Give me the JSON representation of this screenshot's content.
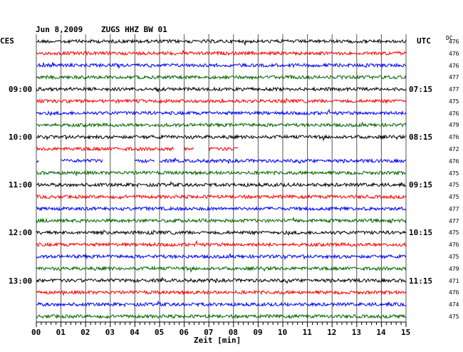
{
  "header": {
    "date": "Jun 8,2009",
    "station": "ZUGS HHZ BW 01",
    "left_zone": "CES",
    "right_zone": "UTC",
    "dc_label": "DC"
  },
  "chart_data": {
    "type": "line",
    "title": "Jun 8,2009   ZUGS HHZ BW 01",
    "xlabel": "Zeit [min]",
    "xlim": [
      0,
      15
    ],
    "x_tick_labels": [
      "00",
      "01",
      "02",
      "03",
      "04",
      "05",
      "06",
      "07",
      "08",
      "09",
      "10",
      "11",
      "12",
      "13",
      "14",
      "15"
    ],
    "left_time_labels": [
      "09:00",
      "10:00",
      "11:00",
      "12:00",
      "13:00"
    ],
    "right_time_labels": [
      "07:15",
      "08:15",
      "09:15",
      "10:15",
      "11:15"
    ],
    "trace_colors": [
      "#000000",
      "#ff0000",
      "#0000ff",
      "#006600"
    ],
    "traces": [
      {
        "dc": "476"
      },
      {
        "dc": "476"
      },
      {
        "dc": "476"
      },
      {
        "dc": "477"
      },
      {
        "dc": "477"
      },
      {
        "dc": "475"
      },
      {
        "dc": "476"
      },
      {
        "dc": "479"
      },
      {
        "dc": "476"
      },
      {
        "dc": "472",
        "segments": [
          [
            0,
            5.6
          ],
          [
            6.0,
            6.4
          ],
          [
            7.0,
            8.2
          ]
        ]
      },
      {
        "dc": "476",
        "segments": [
          [
            0,
            0.1
          ],
          [
            1.0,
            2.7
          ],
          [
            4.0,
            4.8
          ],
          [
            5.0,
            15
          ]
        ]
      },
      {
        "dc": "475"
      },
      {
        "dc": "475"
      },
      {
        "dc": "475"
      },
      {
        "dc": "477"
      },
      {
        "dc": "477"
      },
      {
        "dc": "475"
      },
      {
        "dc": "476"
      },
      {
        "dc": "475"
      },
      {
        "dc": "479"
      },
      {
        "dc": "471"
      },
      {
        "dc": "476"
      },
      {
        "dc": "474"
      },
      {
        "dc": "475"
      }
    ],
    "grid": true
  }
}
